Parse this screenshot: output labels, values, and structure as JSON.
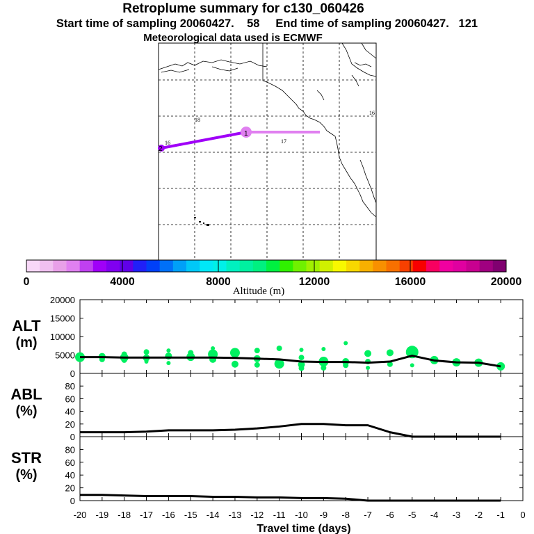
{
  "header": {
    "title": "Retroplume summary for c130_060426",
    "sampling_line": "Start time of sampling 20060427.    58     End time of sampling 20060427.   121",
    "met_line": "Meteorological data used is ECMWF"
  },
  "map": {
    "labels": [
      "16",
      "18",
      "17",
      "16"
    ],
    "track_points": [
      {
        "label": "2",
        "lon": -160.3,
        "lat": 38.0,
        "altitude_m": 2000
      },
      {
        "label": "1",
        "lon": -141.8,
        "lat": 41.2,
        "altitude_m": 1000
      },
      {
        "label": "",
        "lon": -126.0,
        "lat": 41.2,
        "altitude_m": 1500
      }
    ]
  },
  "colorbar": {
    "title": "Altitude (m)",
    "tick_labels": [
      "0",
      "4000",
      "8000",
      "12000",
      "16000",
      "20000"
    ],
    "colors": [
      "#f8d8f8",
      "#f0c0f0",
      "#e8a0e8",
      "#e080f0",
      "#c040f0",
      "#a000f8",
      "#8000f0",
      "#6000e8",
      "#2020f8",
      "#0040f8",
      "#0070f8",
      "#00a0f8",
      "#00c8f8",
      "#00e8f8",
      "#00f0e8",
      "#00f0c0",
      "#00f0a0",
      "#00f080",
      "#00f040",
      "#30f000",
      "#70f000",
      "#a0f000",
      "#d0f000",
      "#f8f800",
      "#f8d800",
      "#f8b000",
      "#f89000",
      "#f87000",
      "#f84000",
      "#f80000",
      "#f80060",
      "#f000a0",
      "#e000a0",
      "#c80090",
      "#a00080",
      "#800070"
    ]
  },
  "chart_data": [
    {
      "type": "line",
      "panel": "ALT",
      "ylabel_lines": [
        "ALT",
        "(m)"
      ],
      "ylim": [
        0,
        20000
      ],
      "y_ticks": [
        0,
        5000,
        10000,
        15000,
        20000
      ],
      "x": [
        -20,
        -19,
        -18,
        -17,
        -16,
        -15,
        -14,
        -13,
        -12,
        -11,
        -10,
        -9,
        -8,
        -7,
        -6,
        -5,
        -4,
        -3,
        -2,
        -1
      ],
      "values": [
        4400,
        4400,
        4300,
        4300,
        4300,
        4300,
        4300,
        4200,
        4000,
        3800,
        3200,
        3100,
        3100,
        2900,
        3200,
        4800,
        3500,
        3000,
        2900,
        1900
      ],
      "blobs": [
        {
          "x": -20,
          "y": 4400,
          "r": 7
        },
        {
          "x": -20,
          "y": 3800,
          "r": 4
        },
        {
          "x": -19,
          "y": 4600,
          "r": 5
        },
        {
          "x": -19,
          "y": 3800,
          "r": 4
        },
        {
          "x": -18,
          "y": 5200,
          "r": 4
        },
        {
          "x": -18,
          "y": 4300,
          "r": 6
        },
        {
          "x": -18,
          "y": 3600,
          "r": 4
        },
        {
          "x": -17,
          "y": 5800,
          "r": 4
        },
        {
          "x": -17,
          "y": 4200,
          "r": 5
        },
        {
          "x": -17,
          "y": 3200,
          "r": 3
        },
        {
          "x": -16,
          "y": 6200,
          "r": 3
        },
        {
          "x": -16,
          "y": 4700,
          "r": 5
        },
        {
          "x": -16,
          "y": 2800,
          "r": 3
        },
        {
          "x": -15,
          "y": 5600,
          "r": 4
        },
        {
          "x": -15,
          "y": 4500,
          "r": 6
        },
        {
          "x": -14,
          "y": 6800,
          "r": 3
        },
        {
          "x": -14,
          "y": 5200,
          "r": 7
        },
        {
          "x": -14,
          "y": 3800,
          "r": 5
        },
        {
          "x": -13,
          "y": 5600,
          "r": 7
        },
        {
          "x": -13,
          "y": 2500,
          "r": 5
        },
        {
          "x": -12,
          "y": 6200,
          "r": 4
        },
        {
          "x": -12,
          "y": 4000,
          "r": 5
        },
        {
          "x": -12,
          "y": 2300,
          "r": 4
        },
        {
          "x": -11,
          "y": 6800,
          "r": 4
        },
        {
          "x": -11,
          "y": 2600,
          "r": 7
        },
        {
          "x": -10,
          "y": 6400,
          "r": 3
        },
        {
          "x": -10,
          "y": 4300,
          "r": 4
        },
        {
          "x": -10,
          "y": 2400,
          "r": 5
        },
        {
          "x": -10,
          "y": 1400,
          "r": 4
        },
        {
          "x": -9,
          "y": 6600,
          "r": 3
        },
        {
          "x": -9,
          "y": 3200,
          "r": 7
        },
        {
          "x": -9,
          "y": 1500,
          "r": 4
        },
        {
          "x": -8,
          "y": 8200,
          "r": 3
        },
        {
          "x": -8,
          "y": 3200,
          "r": 5
        },
        {
          "x": -8,
          "y": 2200,
          "r": 4
        },
        {
          "x": -7,
          "y": 5400,
          "r": 5
        },
        {
          "x": -7,
          "y": 3200,
          "r": 4
        },
        {
          "x": -7,
          "y": 1500,
          "r": 3
        },
        {
          "x": -6,
          "y": 5600,
          "r": 5
        },
        {
          "x": -6,
          "y": 2500,
          "r": 4
        },
        {
          "x": -5,
          "y": 5800,
          "r": 9
        },
        {
          "x": -5,
          "y": 2200,
          "r": 3
        },
        {
          "x": -4,
          "y": 3600,
          "r": 6
        },
        {
          "x": -3,
          "y": 3000,
          "r": 6
        },
        {
          "x": -2,
          "y": 2900,
          "r": 6
        },
        {
          "x": -1,
          "y": 1900,
          "r": 6
        }
      ]
    },
    {
      "type": "line",
      "panel": "ABL",
      "ylabel_lines": [
        "ABL",
        "(%)"
      ],
      "ylim": [
        0,
        100
      ],
      "y_ticks": [
        0,
        20,
        40,
        60,
        80
      ],
      "x": [
        -20,
        -19,
        -18,
        -17,
        -16,
        -15,
        -14,
        -13,
        -12,
        -11,
        -10,
        -9,
        -8,
        -7,
        -6,
        -5,
        -4,
        -3,
        -2,
        -1
      ],
      "values": [
        7,
        7,
        7,
        8,
        10,
        10,
        10,
        11,
        13,
        16,
        20,
        20,
        18,
        18,
        7,
        0,
        0,
        0,
        0,
        0
      ]
    },
    {
      "type": "line",
      "panel": "STR",
      "ylabel_lines": [
        "STR",
        "(%)"
      ],
      "ylim": [
        0,
        100
      ],
      "y_ticks": [
        0,
        20,
        40,
        60,
        80
      ],
      "x": [
        -20,
        -19,
        -18,
        -17,
        -16,
        -15,
        -14,
        -13,
        -12,
        -11,
        -10,
        -9,
        -8,
        -7,
        -6,
        -5,
        -4,
        -3,
        -2,
        -1
      ],
      "values": [
        9,
        9,
        8,
        7,
        7,
        7,
        6,
        6,
        5,
        5,
        4,
        4,
        3,
        0,
        0,
        0,
        0,
        0,
        0,
        0
      ],
      "xlabel": "Travel time (days)",
      "x_tick_labels": [
        "-20",
        "-19",
        "-18",
        "-17",
        "-16",
        "-15",
        "-14",
        "-13",
        "-12",
        "-11",
        "-10",
        "-9",
        "-8",
        "-7",
        "-6",
        "-5",
        "-4",
        "-3",
        "-2",
        "-1",
        "0"
      ]
    }
  ]
}
